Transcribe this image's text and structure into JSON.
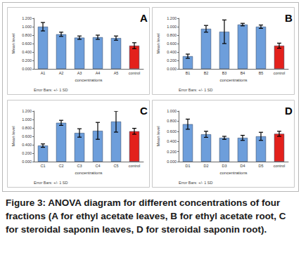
{
  "caption": "Figure 3: ANOVA diagram for different concentrations of four fractions (A for ethyl acetate leaves, B for ethyl acetate root, C for steroidal saponin leaves, D for steroidal saponin root).",
  "chart_data": [
    {
      "type": "bar",
      "title": "A",
      "x_label": "concentrations",
      "y_label": "Mean level",
      "annotations": [
        "Error Bars: +/- 1 SD"
      ],
      "categories": [
        "A1",
        "A2",
        "A3",
        "A4",
        "A5",
        "control"
      ],
      "values": [
        1.0,
        0.82,
        0.74,
        0.75,
        0.73,
        0.55
      ],
      "errors": [
        0.1,
        0.05,
        0.04,
        0.05,
        0.05,
        0.07
      ],
      "colors": [
        "#6d9edb",
        "#6d9edb",
        "#6d9edb",
        "#6d9edb",
        "#6d9edb",
        "#e3211c"
      ],
      "ylim": [
        0,
        1.2
      ],
      "yticks": [
        {
          "value": 0,
          "label": "0.000"
        },
        {
          "value": 0.2,
          "label": "0.200"
        },
        {
          "value": 0.4,
          "label": "0.400"
        },
        {
          "value": 0.6,
          "label": "0.600"
        },
        {
          "value": 0.8,
          "label": "0.800"
        },
        {
          "value": 1.0,
          "label": "1.000"
        },
        {
          "value": 1.2,
          "label": "1.200"
        }
      ],
      "grid": false
    },
    {
      "type": "bar",
      "title": "B",
      "x_label": "concentrations",
      "y_label": "Mean level",
      "annotations": [
        "Error Bars: +/- 1 SD"
      ],
      "categories": [
        "B1",
        "B2",
        "B3",
        "B4",
        "B5",
        "control"
      ],
      "values": [
        0.3,
        0.95,
        0.88,
        1.05,
        1.0,
        0.55
      ],
      "errors": [
        0.05,
        0.08,
        0.28,
        0.03,
        0.04,
        0.06
      ],
      "colors": [
        "#6d9edb",
        "#6d9edb",
        "#6d9edb",
        "#6d9edb",
        "#6d9edb",
        "#e3211c"
      ],
      "ylim": [
        0,
        1.2
      ],
      "yticks": [
        {
          "value": 0,
          "label": "0.000"
        },
        {
          "value": 0.2,
          "label": "0.200"
        },
        {
          "value": 0.4,
          "label": "0.400"
        },
        {
          "value": 0.6,
          "label": "0.600"
        },
        {
          "value": 0.8,
          "label": "0.800"
        },
        {
          "value": 1.0,
          "label": "1.000"
        },
        {
          "value": 1.2,
          "label": "1.200"
        }
      ],
      "grid": false
    },
    {
      "type": "bar",
      "title": "C",
      "x_label": "concentrations",
      "y_label": "Mean level",
      "annotations": [
        "Error Bars: +/- 1 SD"
      ],
      "categories": [
        "C1",
        "C2",
        "C3",
        "C4",
        "C5",
        "control"
      ],
      "values": [
        0.38,
        0.92,
        0.68,
        0.73,
        0.95,
        0.72
      ],
      "errors": [
        0.04,
        0.06,
        0.1,
        0.2,
        0.25,
        0.07
      ],
      "colors": [
        "#6d9edb",
        "#6d9edb",
        "#6d9edb",
        "#6d9edb",
        "#6d9edb",
        "#e3211c"
      ],
      "ylim": [
        0,
        1.2
      ],
      "yticks": [
        {
          "value": 0,
          "label": "0.000"
        },
        {
          "value": 0.2,
          "label": "0.200"
        },
        {
          "value": 0.4,
          "label": "0.400"
        },
        {
          "value": 0.6,
          "label": "0.600"
        },
        {
          "value": 0.8,
          "label": "0.800"
        },
        {
          "value": 1.0,
          "label": "1.000"
        },
        {
          "value": 1.2,
          "label": "1.200"
        }
      ],
      "grid": false
    },
    {
      "type": "bar",
      "title": "D",
      "x_label": "concentrations",
      "y_label": "Mean level",
      "annotations": [
        "Error Bars: +/- 1 SD"
      ],
      "categories": [
        "D1",
        "D2",
        "D3",
        "D4",
        "D5",
        "control"
      ],
      "values": [
        0.74,
        0.54,
        0.47,
        0.47,
        0.5,
        0.55
      ],
      "errors": [
        0.1,
        0.06,
        0.03,
        0.05,
        0.08,
        0.05
      ],
      "colors": [
        "#6d9edb",
        "#6d9edb",
        "#6d9edb",
        "#6d9edb",
        "#6d9edb",
        "#e3211c"
      ],
      "ylim": [
        0,
        1.0
      ],
      "yticks": [
        {
          "value": 0,
          "label": "0.000"
        },
        {
          "value": 0.2,
          "label": "0.200"
        },
        {
          "value": 0.4,
          "label": "0.400"
        },
        {
          "value": 0.6,
          "label": "0.600"
        },
        {
          "value": 0.8,
          "label": "0.800"
        },
        {
          "value": 1.0,
          "label": "1.000"
        }
      ],
      "grid": false
    }
  ]
}
